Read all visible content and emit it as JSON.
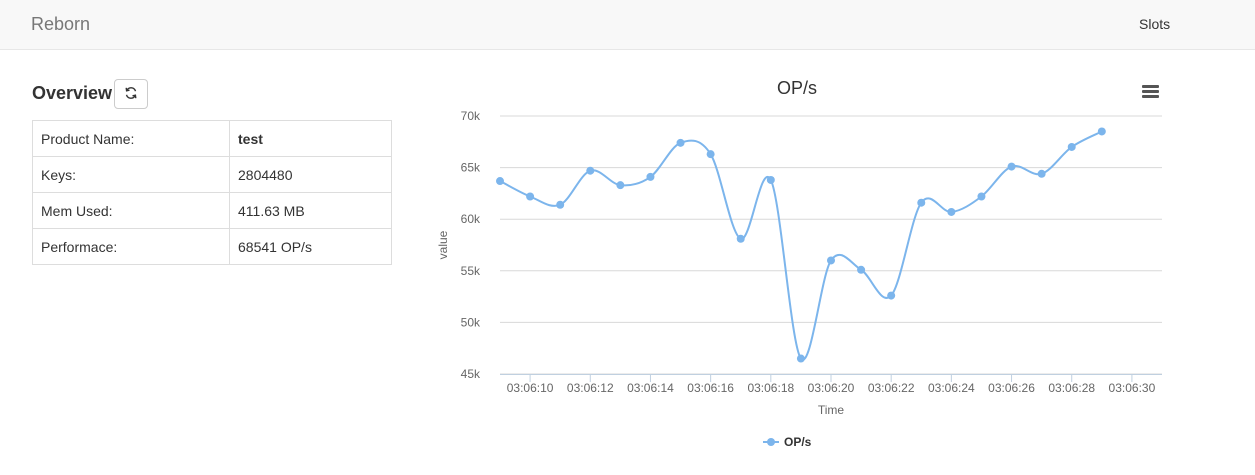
{
  "navbar": {
    "brand": "Reborn",
    "slots_link": "Slots"
  },
  "overview": {
    "title": "Overview",
    "rows": [
      {
        "key": "Product Name:",
        "value": "test"
      },
      {
        "key": "Keys:",
        "value": "2804480"
      },
      {
        "key": "Mem Used:",
        "value": "411.63 MB"
      },
      {
        "key": "Performace:",
        "value": "68541 OP/s"
      }
    ]
  },
  "icons": {
    "refresh": "refresh-icon",
    "menu": "hamburger-menu-icon"
  },
  "colors": {
    "series": "#7cb5ec",
    "grid": "#d8d8d8",
    "text": "#666666"
  },
  "chart_data": {
    "type": "line",
    "title": "OP/s",
    "xlabel": "Time",
    "ylabel": "value",
    "ylim": [
      45000,
      70000
    ],
    "y_ticks": [
      45000,
      50000,
      55000,
      60000,
      65000,
      70000
    ],
    "y_tick_labels": [
      "45k",
      "50k",
      "55k",
      "60k",
      "65k",
      "70k"
    ],
    "x_range": [
      "03:06:09",
      "03:06:31"
    ],
    "x_tick_labels": [
      "03:06:10",
      "03:06:12",
      "03:06:14",
      "03:06:16",
      "03:06:18",
      "03:06:20",
      "03:06:22",
      "03:06:24",
      "03:06:26",
      "03:06:28",
      "03:06:30"
    ],
    "grid": true,
    "legend_position": "bottom-center",
    "series": [
      {
        "name": "OP/s",
        "points": [
          {
            "x": "03:06:09",
            "y": 63700
          },
          {
            "x": "03:06:10",
            "y": 62200
          },
          {
            "x": "03:06:11",
            "y": 61400
          },
          {
            "x": "03:06:12",
            "y": 64700
          },
          {
            "x": "03:06:13",
            "y": 63300
          },
          {
            "x": "03:06:14",
            "y": 64100
          },
          {
            "x": "03:06:15",
            "y": 67400
          },
          {
            "x": "03:06:16",
            "y": 66300
          },
          {
            "x": "03:06:17",
            "y": 58100
          },
          {
            "x": "03:06:18",
            "y": 63800
          },
          {
            "x": "03:06:19",
            "y": 46500
          },
          {
            "x": "03:06:20",
            "y": 56000
          },
          {
            "x": "03:06:21",
            "y": 55100
          },
          {
            "x": "03:06:22",
            "y": 52600
          },
          {
            "x": "03:06:23",
            "y": 61600
          },
          {
            "x": "03:06:24",
            "y": 60700
          },
          {
            "x": "03:06:25",
            "y": 62200
          },
          {
            "x": "03:06:26",
            "y": 65100
          },
          {
            "x": "03:06:27",
            "y": 64400
          },
          {
            "x": "03:06:28",
            "y": 67000
          },
          {
            "x": "03:06:29",
            "y": 68500
          }
        ]
      }
    ]
  }
}
